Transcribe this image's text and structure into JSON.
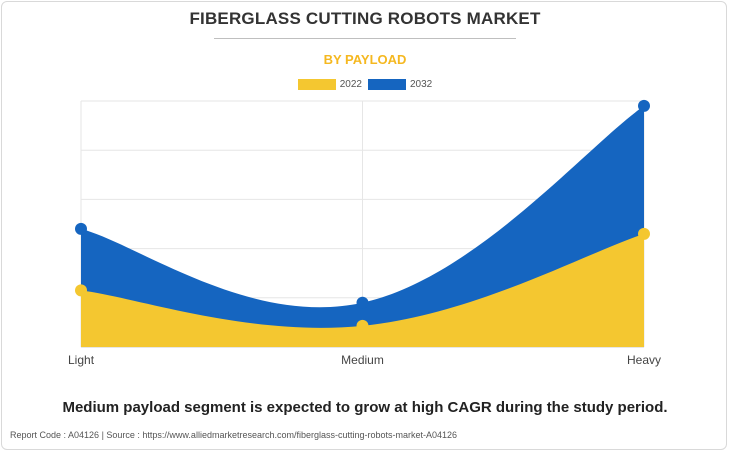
{
  "title": "FIBERGLASS CUTTING ROBOTS MARKET",
  "subtitle": "BY PAYLOAD",
  "footnote": "Medium payload segment is expected to grow at high CAGR during the study period.",
  "source": "Report Code : A04126  |  Source : https://www.alliedmarketresearch.com/fiberglass-cutting-robots-market-A04126",
  "colors": {
    "s2022": "#f4c730",
    "s2032": "#1565c0",
    "subtitle": "#f5b820"
  },
  "chart_data": {
    "type": "area",
    "categories": [
      "Light",
      "Medium",
      "Heavy"
    ],
    "series": [
      {
        "name": "2022",
        "values": [
          11.5,
          4.3,
          23.0
        ]
      },
      {
        "name": "2032",
        "values": [
          24.0,
          9.0,
          49.0
        ]
      }
    ],
    "ylim": [
      0,
      50
    ],
    "grid": true,
    "legend": "top-center"
  }
}
